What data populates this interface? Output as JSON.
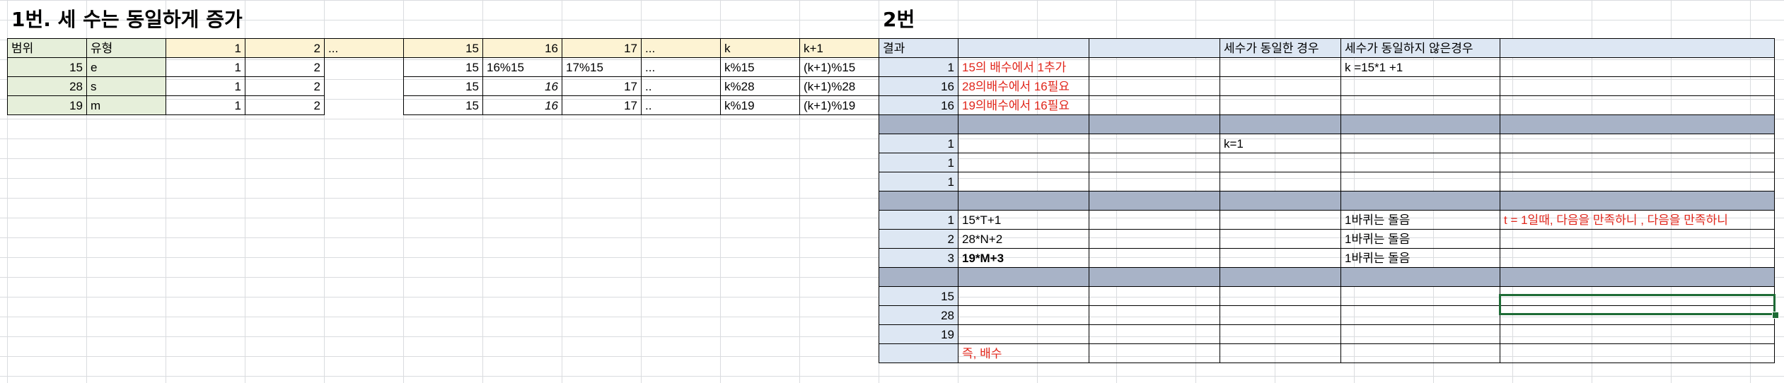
{
  "sheet1": {
    "title": "1번. 세 수는 동일하게 증가",
    "header": [
      "범위",
      "유형",
      "1",
      "2",
      "...",
      "15",
      "16",
      "17",
      "...",
      "k",
      "k+1"
    ],
    "rows": [
      [
        "15",
        "e",
        "1",
        "2",
        "",
        "15",
        "16%15",
        "17%15",
        "...",
        "k%15",
        "(k+1)%15"
      ],
      [
        "28",
        "s",
        "1",
        "2",
        "",
        "15",
        "16",
        "17",
        "..",
        "k%28",
        "(k+1)%28"
      ],
      [
        "19",
        "m",
        "1",
        "2",
        "",
        "15",
        "16",
        "17",
        "..",
        "k%19",
        "(k+1)%19"
      ]
    ]
  },
  "sheet2": {
    "title": "2번",
    "header": [
      "결과",
      "",
      "",
      "세수가 동일한 경우",
      "세수가 동일하지 않은경우",
      ""
    ],
    "rows": [
      {
        "result": "1",
        "note": "15의 배수에서 1추가",
        "col5": "k =15*1 +1"
      },
      {
        "result": "16",
        "note": "28의배수에서 16필요"
      },
      {
        "result": "16",
        "note": "19의배수에서 16필요"
      },
      {
        "result": "1",
        "col4": "k=1"
      },
      {
        "result": "1"
      },
      {
        "result": "1"
      },
      {
        "result": "1",
        "note": "15*T+1",
        "col5": "1바퀴는 돌음",
        "col6": "t = 1일때,  다음을 만족하니 , 다음을 만족하니"
      },
      {
        "result": "2",
        "note": "28*N+2",
        "col5": "1바퀴는 돌음"
      },
      {
        "result": "3",
        "note": "19*M+3",
        "col5": "1바퀴는 돌음"
      },
      {
        "result": "15"
      },
      {
        "result": "28"
      },
      {
        "result": "19"
      },
      {
        "note": "즉, 배수"
      }
    ]
  }
}
